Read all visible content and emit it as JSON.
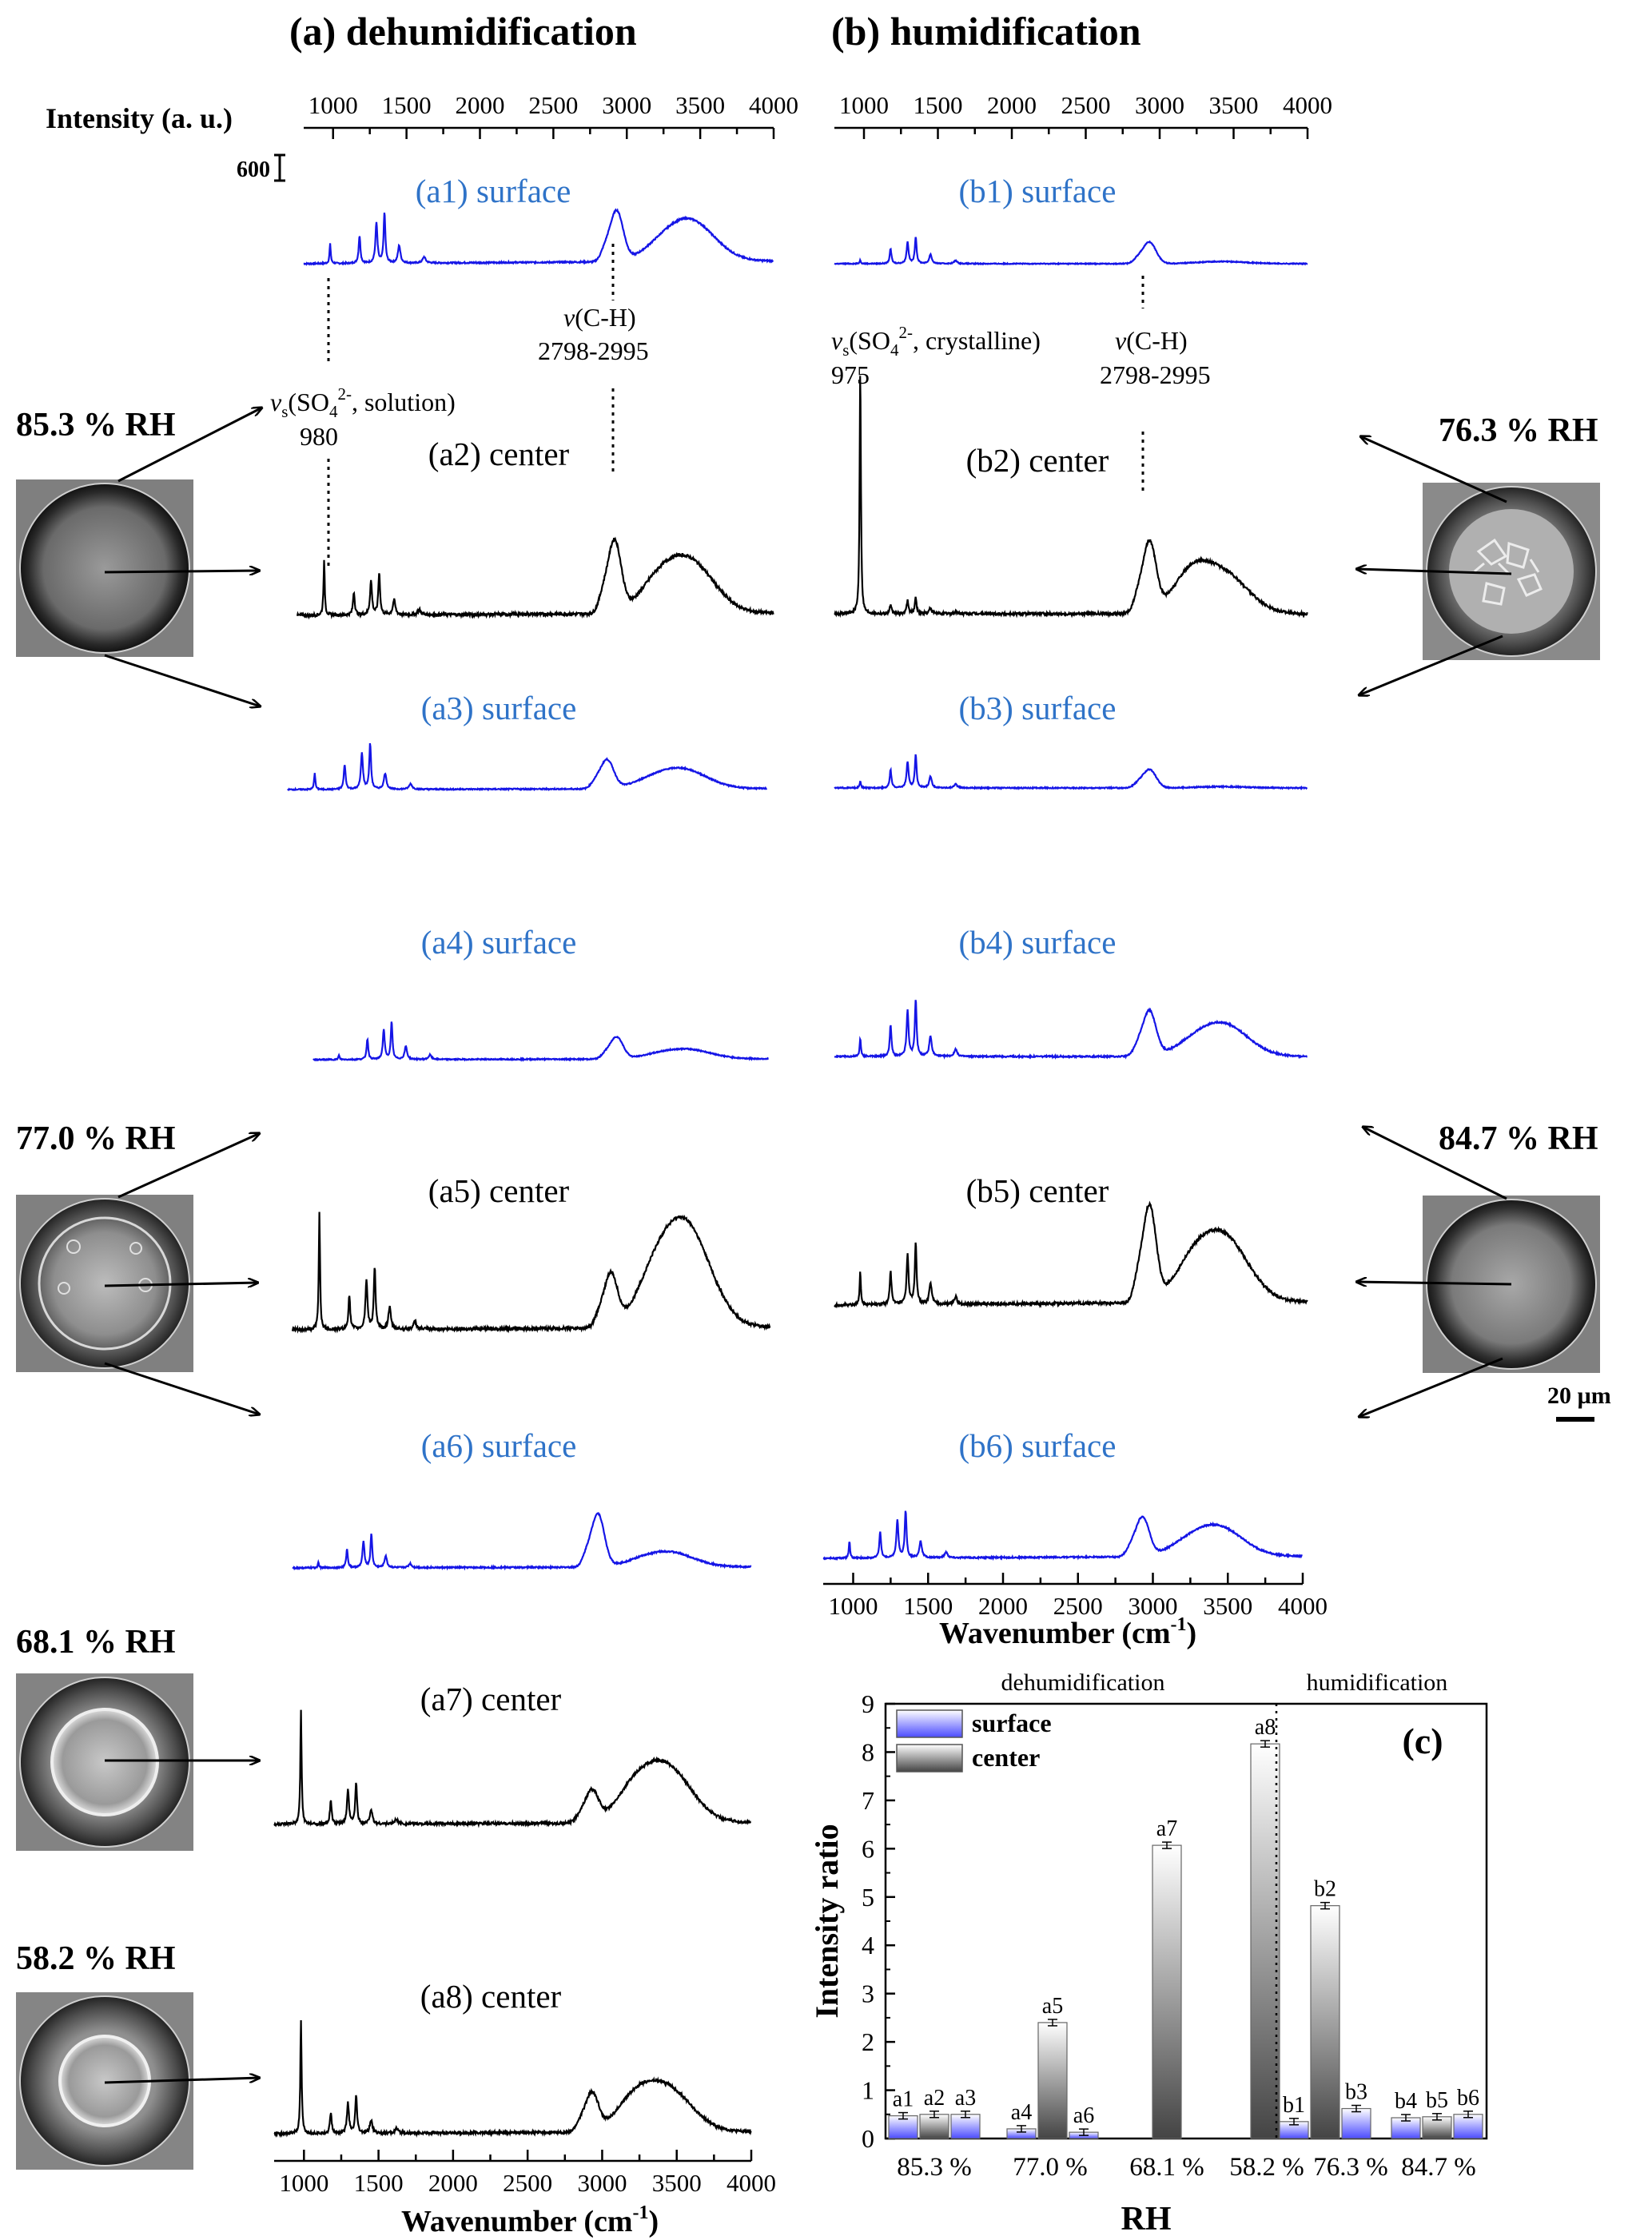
{
  "panel_titles": {
    "a": "(a) dehumidification",
    "b": "(b) humidification"
  },
  "intensity_axis": {
    "label": "Intensity (a. u.)",
    "scale_bar_value": "600"
  },
  "wavenumber_axis": {
    "ticks": [
      "1000",
      "1500",
      "2000",
      "2500",
      "3000",
      "3500",
      "4000"
    ],
    "xlabel_main": "Wavenumber (cm",
    "xlabel_sup": "-1",
    "xlabel_end": ")",
    "xlim": [
      800,
      4000
    ]
  },
  "rh_labels": {
    "a_85": "85.3 % RH",
    "a_77": "77.0 % RH",
    "a_68": "68.1 % RH",
    "a_58": "58.2 % RH",
    "b_76": "76.3 % RH",
    "b_84": "84.7 % RH"
  },
  "scale_bar": "20 µm",
  "annotations": {
    "so4_solution_v": "v",
    "so4_solution_sub": "s",
    "so4_solution_text": "(SO",
    "so4_solution_sub4": "4",
    "so4_solution_sup": "2-",
    "so4_solution_rest": ", solution)",
    "so4_solution_num": "980",
    "ch_v": "v",
    "ch_rest": "(C-H)",
    "ch_range": "2798-2995",
    "so4_cryst_v": "v",
    "so4_cryst_sub": "s",
    "so4_cryst_text": "(SO",
    "so4_cryst_sub4": "4",
    "so4_cryst_sup": "2-",
    "so4_cryst_rest": ", crystalline)",
    "so4_cryst_num": "975"
  },
  "spectra": [
    {
      "id": "a1",
      "label": "(a1) surface",
      "kind": "surface"
    },
    {
      "id": "a2",
      "label": "(a2) center",
      "kind": "center"
    },
    {
      "id": "a3",
      "label": "(a3) surface",
      "kind": "surface"
    },
    {
      "id": "a4",
      "label": "(a4) surface",
      "kind": "surface"
    },
    {
      "id": "a5",
      "label": "(a5) center",
      "kind": "center"
    },
    {
      "id": "a6",
      "label": "(a6) surface",
      "kind": "surface"
    },
    {
      "id": "a7",
      "label": "(a7) center",
      "kind": "center"
    },
    {
      "id": "a8",
      "label": "(a8) center",
      "kind": "center"
    },
    {
      "id": "b1",
      "label": "(b1) surface",
      "kind": "surface"
    },
    {
      "id": "b2",
      "label": "(b2) center",
      "kind": "center"
    },
    {
      "id": "b3",
      "label": "(b3) surface",
      "kind": "surface"
    },
    {
      "id": "b4",
      "label": "(b4) surface",
      "kind": "surface"
    },
    {
      "id": "b5",
      "label": "(b5) center",
      "kind": "center"
    },
    {
      "id": "b6",
      "label": "(b6) surface",
      "kind": "surface"
    }
  ],
  "colors": {
    "surface": "#1515e6",
    "center": "#000000",
    "surface_label": "#2f73c8",
    "surface_bar": "#5a5aff"
  },
  "chart_data": {
    "type": "bar",
    "panel_label": "(c)",
    "ylabel": "Intensity ratio",
    "xlabel": "RH",
    "ylim": [
      0,
      9
    ],
    "yticks": [
      0,
      1,
      2,
      3,
      4,
      5,
      6,
      7,
      8,
      9
    ],
    "group_labels": [
      "85.3 %",
      "77.0 %",
      "68.1 %",
      "58.2 %",
      "76.3 %",
      "84.7 %"
    ],
    "section_labels": [
      "dehumidification",
      "humidification"
    ],
    "legend": [
      "surface",
      "center"
    ],
    "legend_position": "top-left",
    "bars": [
      {
        "label": "a1",
        "group": 0,
        "series": "surface",
        "value": 0.47
      },
      {
        "label": "a2",
        "group": 0,
        "series": "center",
        "value": 0.5
      },
      {
        "label": "a3",
        "group": 0,
        "series": "surface",
        "value": 0.5
      },
      {
        "label": "a4",
        "group": 1,
        "series": "surface",
        "value": 0.2
      },
      {
        "label": "a5",
        "group": 1,
        "series": "center",
        "value": 2.4
      },
      {
        "label": "a6",
        "group": 1,
        "series": "surface",
        "value": 0.13
      },
      {
        "label": "a7",
        "group": 2,
        "series": "center",
        "value": 6.07
      },
      {
        "label": "a8",
        "group": 3,
        "series": "center",
        "value": 8.17
      },
      {
        "label": "b1",
        "group": 4,
        "series": "surface",
        "value": 0.35
      },
      {
        "label": "b2",
        "group": 4,
        "series": "center",
        "value": 4.82
      },
      {
        "label": "b3",
        "group": 4,
        "series": "surface",
        "value": 0.62
      },
      {
        "label": "b4",
        "group": 5,
        "series": "surface",
        "value": 0.43
      },
      {
        "label": "b5",
        "group": 5,
        "series": "center",
        "value": 0.45
      },
      {
        "label": "b6",
        "group": 5,
        "series": "surface",
        "value": 0.5
      }
    ]
  }
}
